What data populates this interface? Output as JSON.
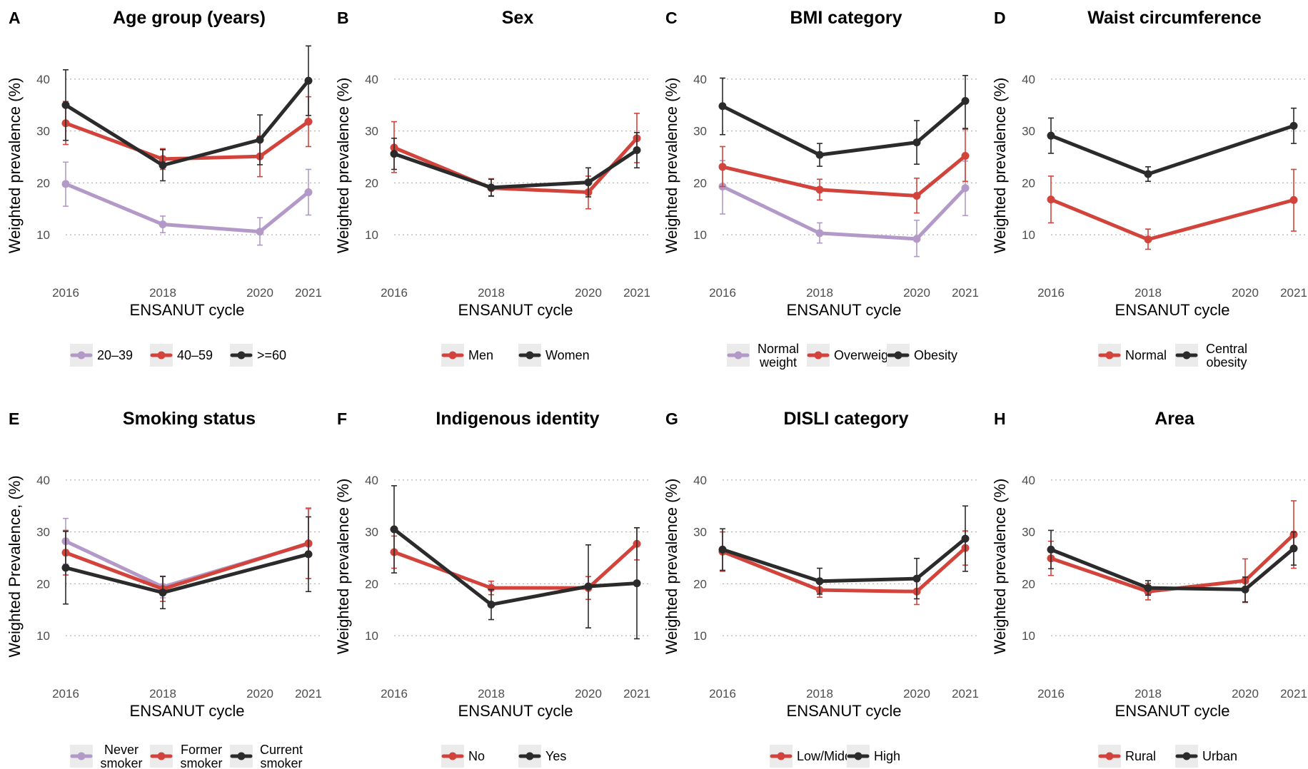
{
  "colors": {
    "purple": "#b399c8",
    "red": "#d2443b",
    "black": "#2b2b2b"
  },
  "chart_data": [
    {
      "letter": "A",
      "title": "Age group (years)",
      "type": "line",
      "xlabel": "ENSANUT cycle",
      "ylabel": "Weighted prevalence (%)",
      "x": [
        2016,
        2018,
        2020,
        2021
      ],
      "xticks": [
        "2016",
        "2018",
        "2020",
        "2021"
      ],
      "yticks": [
        10,
        20,
        30,
        40
      ],
      "ylim": [
        3,
        47
      ],
      "grid": "horizontal dotted",
      "legend": "bottom",
      "series": [
        {
          "name": "20–39",
          "color": "purple",
          "values": [
            19.8,
            12.0,
            10.6,
            18.2
          ],
          "lo": [
            15.5,
            10.4,
            8.0,
            13.8
          ],
          "hi": [
            24.0,
            13.6,
            13.3,
            22.6
          ]
        },
        {
          "name": "40–59",
          "color": "red",
          "values": [
            31.5,
            24.6,
            25.1,
            31.8
          ],
          "lo": [
            27.4,
            22.6,
            21.2,
            27.0
          ],
          "hi": [
            35.7,
            26.6,
            29.0,
            36.6
          ]
        },
        {
          "name": ">=60",
          "color": "black",
          "values": [
            35.0,
            23.4,
            28.3,
            39.7
          ],
          "lo": [
            28.2,
            20.4,
            23.5,
            33.0
          ],
          "hi": [
            41.8,
            26.4,
            33.1,
            46.4
          ]
        }
      ]
    },
    {
      "letter": "B",
      "title": "Sex",
      "type": "line",
      "xlabel": "ENSANUT cycle",
      "ylabel": "Weighted prevalence (%)",
      "x": [
        2016,
        2018,
        2020,
        2021
      ],
      "xticks": [
        "2016",
        "2018",
        "2020",
        "2021"
      ],
      "yticks": [
        10,
        20,
        30,
        40
      ],
      "ylim": [
        3,
        47
      ],
      "grid": "horizontal dotted",
      "legend": "bottom",
      "series": [
        {
          "name": "Men",
          "color": "red",
          "values": [
            26.8,
            19.0,
            18.2,
            28.6
          ],
          "lo": [
            22.0,
            17.4,
            15.0,
            23.9
          ],
          "hi": [
            31.8,
            20.8,
            21.3,
            33.4
          ]
        },
        {
          "name": "Women",
          "color": "black",
          "values": [
            25.6,
            19.1,
            20.1,
            26.3
          ],
          "lo": [
            22.6,
            17.5,
            17.3,
            22.9
          ],
          "hi": [
            28.6,
            20.7,
            22.9,
            29.7
          ]
        }
      ]
    },
    {
      "letter": "C",
      "title": "BMI category",
      "type": "line",
      "xlabel": "ENSANUT cycle",
      "ylabel": "Weighted prevalence (%)",
      "x": [
        2016,
        2018,
        2020,
        2021
      ],
      "xticks": [
        "2016",
        "2018",
        "2020",
        "2021"
      ],
      "yticks": [
        10,
        20,
        30,
        40
      ],
      "ylim": [
        3,
        47
      ],
      "grid": "horizontal dotted",
      "legend": "bottom",
      "series": [
        {
          "name": "Normal weight",
          "color": "purple",
          "values": [
            19.3,
            10.3,
            9.2,
            19.0
          ],
          "lo": [
            14.0,
            8.4,
            5.8,
            13.7
          ],
          "hi": [
            24.3,
            12.3,
            12.8,
            24.2
          ]
        },
        {
          "name": "Overweight",
          "color": "red",
          "values": [
            23.1,
            18.7,
            17.5,
            25.2
          ],
          "lo": [
            19.3,
            16.7,
            14.2,
            20.3
          ],
          "hi": [
            27.0,
            20.7,
            20.9,
            30.3
          ]
        },
        {
          "name": "Obesity",
          "color": "black",
          "values": [
            34.8,
            25.4,
            27.8,
            35.8
          ],
          "lo": [
            29.3,
            23.2,
            23.6,
            30.5
          ],
          "hi": [
            40.2,
            27.6,
            32.0,
            40.7
          ]
        }
      ]
    },
    {
      "letter": "D",
      "title": "Waist circumference",
      "type": "line",
      "xlabel": "ENSANUT cycle",
      "ylabel": "Weighted prevalence (%)",
      "x": [
        2016,
        2018,
        2020,
        2021
      ],
      "xticks": [
        "2016",
        "2018",
        "2020",
        "2021"
      ],
      "yticks": [
        10,
        20,
        30,
        40
      ],
      "ylim": [
        3,
        47
      ],
      "grid": "horizontal dotted",
      "legend": "bottom",
      "series": [
        {
          "name": "Normal",
          "color": "red",
          "x": [
            2016,
            2018,
            2021
          ],
          "values": [
            16.8,
            9.1,
            16.7
          ],
          "lo": [
            12.3,
            7.2,
            10.7
          ],
          "hi": [
            21.3,
            11.1,
            22.6
          ]
        },
        {
          "name": "Central obesity",
          "color": "black",
          "x": [
            2016,
            2018,
            2021
          ],
          "values": [
            29.1,
            21.7,
            31.0
          ],
          "lo": [
            25.7,
            20.3,
            27.6
          ],
          "hi": [
            32.5,
            23.1,
            34.4
          ]
        }
      ]
    },
    {
      "letter": "E",
      "title": "Smoking status",
      "type": "line",
      "xlabel": "ENSANUT cycle",
      "ylabel": "Weighted Prevalence, (%)",
      "x": [
        2016,
        2018,
        2020,
        2021
      ],
      "xticks": [
        "2016",
        "2018",
        "2020",
        "2021"
      ],
      "yticks": [
        10,
        20,
        30,
        40
      ],
      "ylim": [
        3,
        47
      ],
      "grid": "horizontal dotted",
      "legend": "bottom",
      "series": [
        {
          "name": "Never smoker",
          "color": "purple",
          "x": [
            2016,
            2018,
            2021
          ],
          "values": [
            28.2,
            19.4,
            27.7
          ],
          "lo": [
            23.8,
            17.3,
            21.0
          ],
          "hi": [
            32.6,
            21.5,
            34.4
          ]
        },
        {
          "name": "Former smoker",
          "color": "red",
          "x": [
            2016,
            2018,
            2021
          ],
          "values": [
            26.0,
            19.0,
            27.8
          ],
          "lo": [
            21.7,
            16.6,
            21.0
          ],
          "hi": [
            30.3,
            21.4,
            34.6
          ]
        },
        {
          "name": "Current smoker",
          "color": "black",
          "x": [
            2016,
            2018,
            2021
          ],
          "values": [
            23.1,
            18.3,
            25.7
          ],
          "lo": [
            16.1,
            15.2,
            18.5
          ],
          "hi": [
            30.1,
            21.4,
            32.9
          ]
        }
      ]
    },
    {
      "letter": "F",
      "title": "Indigenous identity",
      "type": "line",
      "xlabel": "ENSANUT cycle",
      "ylabel": "Weighted prevalence (%)",
      "x": [
        2016,
        2018,
        2020,
        2021
      ],
      "xticks": [
        "2016",
        "2018",
        "2020",
        "2021"
      ],
      "yticks": [
        10,
        20,
        30,
        40
      ],
      "ylim": [
        3,
        47
      ],
      "grid": "horizontal dotted",
      "legend": "bottom",
      "series": [
        {
          "name": "No",
          "color": "red",
          "values": [
            26.1,
            19.2,
            19.2,
            27.7
          ],
          "lo": [
            23.0,
            17.9,
            17.0,
            24.6
          ],
          "hi": [
            29.2,
            20.5,
            21.4,
            30.8
          ]
        },
        {
          "name": "Yes",
          "color": "black",
          "values": [
            30.5,
            16.0,
            19.5,
            20.1
          ],
          "lo": [
            22.1,
            13.1,
            11.5,
            9.4
          ],
          "hi": [
            38.9,
            18.9,
            27.5,
            30.8
          ]
        }
      ]
    },
    {
      "letter": "G",
      "title": "DISLI category",
      "type": "line",
      "xlabel": "ENSANUT cycle",
      "ylabel": "Weighted prevalence (%)",
      "x": [
        2016,
        2018,
        2020,
        2021
      ],
      "xticks": [
        "2016",
        "2018",
        "2020",
        "2021"
      ],
      "yticks": [
        10,
        20,
        30,
        40
      ],
      "ylim": [
        3,
        47
      ],
      "grid": "horizontal dotted",
      "legend": "bottom",
      "series": [
        {
          "name": "Low/Middle",
          "color": "red",
          "values": [
            26.2,
            18.8,
            18.5,
            26.9
          ],
          "lo": [
            22.4,
            17.4,
            16.0,
            23.6
          ],
          "hi": [
            30.0,
            20.2,
            21.0,
            30.2
          ]
        },
        {
          "name": "High",
          "color": "black",
          "values": [
            26.6,
            20.5,
            21.0,
            28.7
          ],
          "lo": [
            22.6,
            18.0,
            17.1,
            22.4
          ],
          "hi": [
            30.6,
            23.0,
            24.9,
            35.0
          ]
        }
      ]
    },
    {
      "letter": "H",
      "title": "Area",
      "type": "line",
      "xlabel": "ENSANUT cycle",
      "ylabel": "Weighted prevalence (%)",
      "x": [
        2016,
        2018,
        2020,
        2021
      ],
      "xticks": [
        "2016",
        "2018",
        "2020",
        "2021"
      ],
      "yticks": [
        10,
        20,
        30,
        40
      ],
      "ylim": [
        3,
        47
      ],
      "grid": "horizontal dotted",
      "legend": "bottom",
      "series": [
        {
          "name": "Rural",
          "color": "red",
          "values": [
            24.9,
            18.5,
            20.6,
            29.5
          ],
          "lo": [
            21.6,
            16.9,
            16.4,
            23.0
          ],
          "hi": [
            28.2,
            20.1,
            24.8,
            36.0
          ]
        },
        {
          "name": "Urban",
          "color": "black",
          "values": [
            26.6,
            19.2,
            18.9,
            26.8
          ],
          "lo": [
            22.9,
            17.8,
            16.5,
            23.6
          ],
          "hi": [
            30.3,
            20.6,
            21.3,
            30.0
          ]
        }
      ]
    }
  ]
}
